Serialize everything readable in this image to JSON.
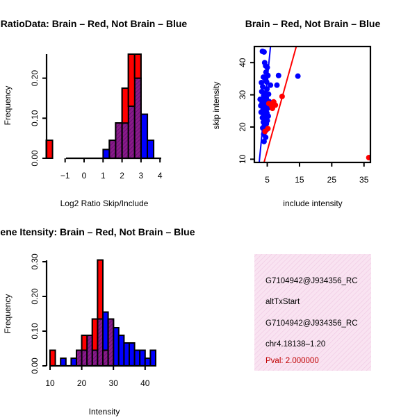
{
  "colors": {
    "red": "#ff0000",
    "blue": "#0000ff",
    "purple": "#7a167a",
    "info_bg": "#f6dcee"
  },
  "chart_data": [
    {
      "type": "histogram",
      "id": "ratio",
      "title": "RatioData: Brain – Red, Not Brain – Blue",
      "xlabel": "Log2 Ratio Skip/Include",
      "ylabel": "Frequency",
      "xticks": [
        -1,
        0,
        1,
        2,
        3,
        4
      ],
      "yticks": [
        "0.00",
        "0.10",
        "0.20"
      ],
      "ylim": [
        0,
        0.26
      ],
      "bin_width": 0.333,
      "series": [
        {
          "name": "Brain",
          "color": "red",
          "bins": [
            [
              -1.83,
              0.045
            ],
            [
              1.5,
              0.045
            ],
            [
              1.83,
              0.088
            ],
            [
              2.17,
              0.175
            ],
            [
              2.5,
              0.26
            ],
            [
              2.83,
              0.26
            ]
          ]
        },
        {
          "name": "Not Brain",
          "color": "blue",
          "bins": [
            [
              1.17,
              0.022
            ],
            [
              1.5,
              0.045
            ],
            [
              1.83,
              0.088
            ],
            [
              2.17,
              0.088
            ],
            [
              2.5,
              0.13
            ],
            [
              2.83,
              0.2
            ],
            [
              3.17,
              0.11
            ],
            [
              3.5,
              0.045
            ]
          ]
        }
      ]
    },
    {
      "type": "scatter",
      "id": "scatter",
      "title": "Brain – Red, Not Brain – Blue",
      "xlabel": "include intensity",
      "ylabel": "skip intensity",
      "xticks": [
        5,
        15,
        25,
        35
      ],
      "yticks": [
        10,
        20,
        30,
        40
      ],
      "xlim": [
        1,
        37
      ],
      "ylim": [
        9,
        45
      ],
      "series": [
        {
          "name": "Not Brain",
          "color": "blue",
          "points": [
            [
              3.5,
              43.5
            ],
            [
              4,
              43.3
            ],
            [
              4.2,
              40
            ],
            [
              4.5,
              39
            ],
            [
              5,
              38.5
            ],
            [
              4.6,
              37
            ],
            [
              5.2,
              36
            ],
            [
              3.8,
              35.5
            ],
            [
              4.5,
              34.8
            ],
            [
              3.2,
              33.8
            ],
            [
              4.8,
              34
            ],
            [
              6,
              33
            ],
            [
              3.6,
              32.5
            ],
            [
              4.9,
              31.8
            ],
            [
              3.3,
              31
            ],
            [
              4.2,
              30.5
            ],
            [
              5.4,
              30.2
            ],
            [
              3.9,
              29.7
            ],
            [
              4.7,
              29
            ],
            [
              2.8,
              28.6
            ],
            [
              4.1,
              28.3
            ],
            [
              5.6,
              27.9
            ],
            [
              3.4,
              27.5
            ],
            [
              4.5,
              27
            ],
            [
              3,
              26.6
            ],
            [
              4.3,
              26.2
            ],
            [
              5.1,
              25.8
            ],
            [
              3.7,
              25.4
            ],
            [
              4.6,
              25
            ],
            [
              3.1,
              24.6
            ],
            [
              4.9,
              24.3
            ],
            [
              3.9,
              23.8
            ],
            [
              5.3,
              23.4
            ],
            [
              3.5,
              22.9
            ],
            [
              4.4,
              22.5
            ],
            [
              5,
              22
            ],
            [
              3.8,
              21.5
            ],
            [
              4.7,
              21
            ],
            [
              4.1,
              20.4
            ],
            [
              3.6,
              19.7
            ],
            [
              4.8,
              19.2
            ],
            [
              4.2,
              18.5
            ],
            [
              3.9,
              17.8
            ],
            [
              4.5,
              16.8
            ],
            [
              4,
              15.5
            ],
            [
              8.5,
              36
            ],
            [
              8,
              33
            ],
            [
              14.5,
              35.8
            ]
          ]
        },
        {
          "name": "Brain",
          "color": "red",
          "points": [
            [
              5.5,
              27.3
            ],
            [
              6.3,
              26.6
            ],
            [
              7,
              27.8
            ],
            [
              6.6,
              25.8
            ],
            [
              7.5,
              26.8
            ],
            [
              9.6,
              29.5
            ],
            [
              5.2,
              19.5
            ],
            [
              4.3,
              18.6
            ],
            [
              36.5,
              10.5
            ]
          ]
        }
      ],
      "lines": [
        {
          "color": "blue",
          "from": [
            2.5,
            9
          ],
          "to": [
            6,
            45
          ]
        },
        {
          "color": "red",
          "from": [
            4,
            9
          ],
          "to": [
            14,
            45
          ]
        }
      ]
    },
    {
      "type": "histogram",
      "id": "intensity",
      "title": "Gene Itensity: Brain – Red, Not Brain – Blue",
      "xlabel": "Intensity",
      "ylabel": "Frequency",
      "xticks": [
        10,
        20,
        30,
        40
      ],
      "yticks": [
        "0.00",
        "0.10",
        "0.20",
        "0.30"
      ],
      "ylim": [
        0,
        0.31
      ],
      "bin_width": 1.667,
      "series": [
        {
          "name": "Brain",
          "color": "red",
          "bins": [
            [
              10.83,
              0.045
            ],
            [
              19.17,
              0.045
            ],
            [
              20.83,
              0.088
            ],
            [
              22.5,
              0.088
            ],
            [
              24.17,
              0.135
            ],
            [
              25.83,
              0.305
            ],
            [
              27.5,
              0.045
            ],
            [
              29.17,
              0.135
            ]
          ]
        },
        {
          "name": "Not Brain",
          "color": "blue",
          "bins": [
            [
              14.17,
              0.022
            ],
            [
              17.5,
              0.022
            ],
            [
              19.17,
              0.045
            ],
            [
              20.83,
              0.045
            ],
            [
              22.5,
              0.088
            ],
            [
              24.17,
              0.045
            ],
            [
              25.83,
              0.135
            ],
            [
              27.5,
              0.155
            ],
            [
              29.17,
              0.135
            ],
            [
              30.83,
              0.11
            ],
            [
              32.5,
              0.088
            ],
            [
              34.17,
              0.066
            ],
            [
              35.83,
              0.066
            ],
            [
              37.5,
              0.045
            ],
            [
              39.17,
              0.045
            ],
            [
              40.83,
              0.022
            ],
            [
              42.5,
              0.045
            ]
          ]
        }
      ]
    }
  ],
  "info": {
    "line1": "G7104942@J934356_RC",
    "line2": "altTxStart",
    "line3": "G7104942@J934356_RC",
    "line4": "chr4.18138–1.20",
    "pval": "Pval: 2.000000"
  }
}
